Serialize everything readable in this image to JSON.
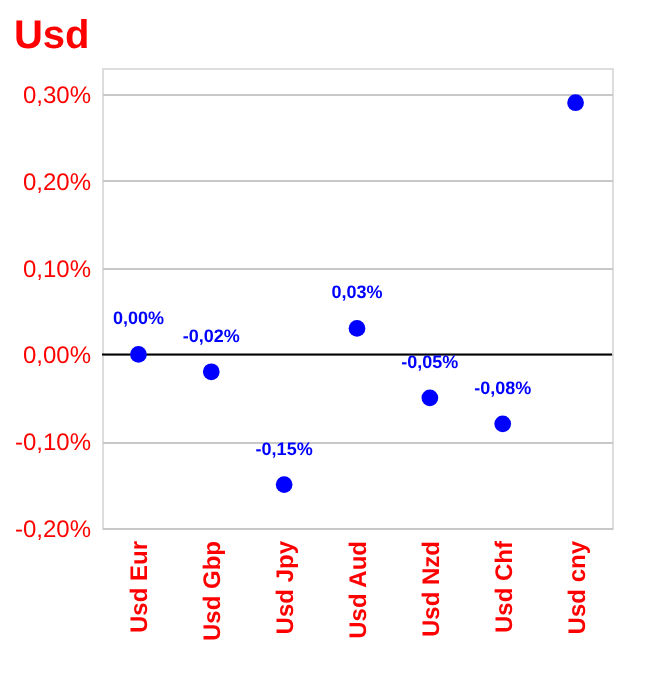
{
  "chart_data": {
    "type": "scatter",
    "title": "Usd",
    "categories": [
      "Usd Eur",
      "Usd Gbp",
      "Usd Jpy",
      "Usd Aud",
      "Usd Nzd",
      "Usd Chf",
      "Usd cny"
    ],
    "series": [
      {
        "color": "#0000ff",
        "values": [
          0.0,
          -0.02,
          -0.15,
          0.03,
          -0.05,
          -0.08,
          0.29
        ],
        "value_labels": [
          "0,00%",
          "-0,02%",
          "-0,15%",
          "0,03%",
          "-0,05%",
          "-0,08%",
          null
        ]
      }
    ],
    "ylim": [
      -0.2,
      0.33
    ],
    "yticks": [
      {
        "value": -0.2,
        "label": "-0,20%"
      },
      {
        "value": -0.1,
        "label": "-0,10%"
      },
      {
        "value": 0.0,
        "label": "0,00%"
      },
      {
        "value": 0.1,
        "label": "0,10%"
      },
      {
        "value": 0.2,
        "label": "0,20%"
      },
      {
        "value": 0.3,
        "label": "0,30%"
      }
    ],
    "ref_lines": [
      {
        "axis": "y",
        "value": 0,
        "color": "#000000"
      }
    ],
    "grid": "y",
    "marker": "circle"
  }
}
